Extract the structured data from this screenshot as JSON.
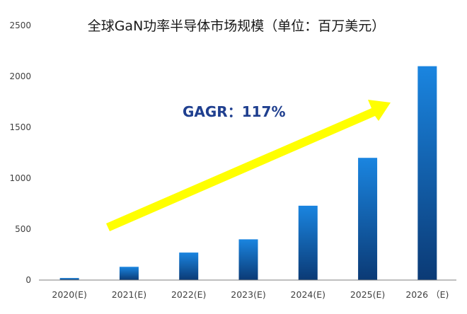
{
  "chart_data": {
    "type": "bar",
    "title": "全球GaN功率半导体市场规模（单位：百万美元）",
    "categories": [
      "2020(E)",
      "2021(E)",
      "2022(E)",
      "2023(E)",
      "2024(E)",
      "2025(E)",
      "2026 （E)"
    ],
    "values": [
      20,
      130,
      270,
      400,
      730,
      1200,
      2100
    ],
    "ylim": [
      0,
      2500
    ],
    "yticks": [
      "0",
      "500",
      "1000",
      "1500",
      "2000",
      "2500"
    ],
    "xlabel": "",
    "ylabel": "",
    "grid": false,
    "legend": "none",
    "annotation": "GAGR：117%",
    "colors": {
      "bar_top": "#1a85e0",
      "bar_bottom": "#0b3a75",
      "arrow": "#ffff00",
      "annotation": "#1f3f8f",
      "axis": "#7f7f7f"
    }
  }
}
